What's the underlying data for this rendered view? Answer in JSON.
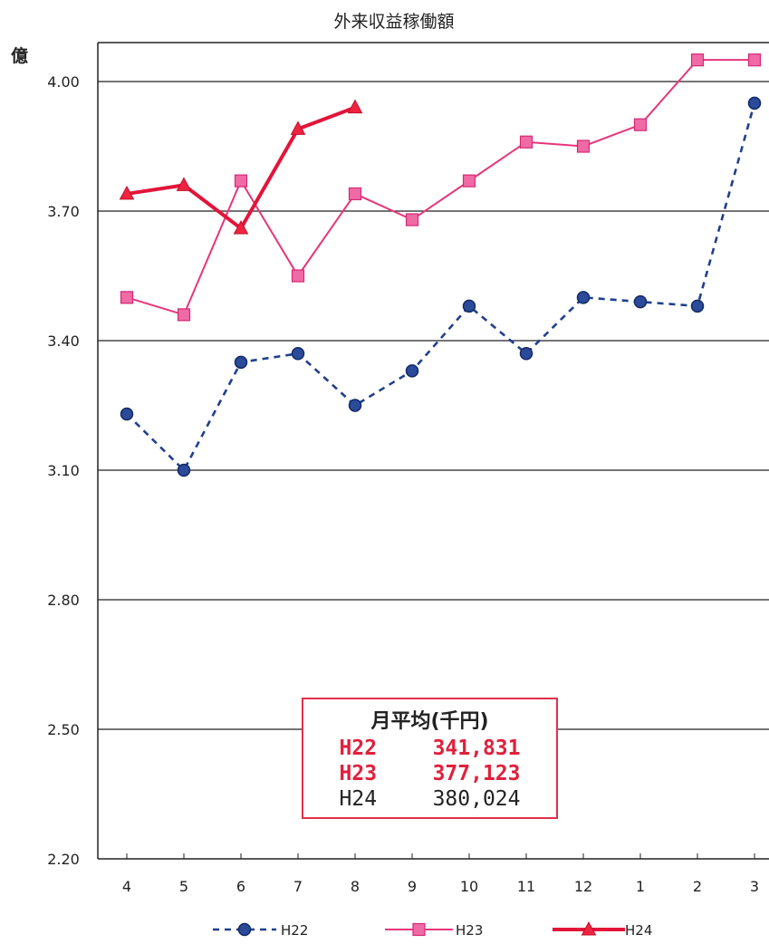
{
  "chart_data": {
    "type": "line",
    "title": "外来収益稼働額",
    "ylabel": "億",
    "ylim": [
      2.2,
      4.1
    ],
    "yticks": [
      "2.20",
      "2.50",
      "2.80",
      "3.10",
      "3.40",
      "3.70",
      "4.00"
    ],
    "yticks_values": [
      2.2,
      2.5,
      2.8,
      3.1,
      3.4,
      3.7,
      4.0
    ],
    "categories": [
      "4",
      "5",
      "6",
      "7",
      "8",
      "9",
      "10",
      "11",
      "12",
      "1",
      "2",
      "3"
    ],
    "grid": true,
    "legend_position": "bottom",
    "series": [
      {
        "name": "H22",
        "color": "#1f3f8f",
        "style": "dashed",
        "marker": "circle",
        "values": [
          3.23,
          3.1,
          3.35,
          3.37,
          3.25,
          3.33,
          3.48,
          3.37,
          3.5,
          3.49,
          3.48,
          3.95
        ]
      },
      {
        "name": "H23",
        "color": "#e8357a",
        "style": "solid",
        "marker": "square",
        "values": [
          3.5,
          3.46,
          3.77,
          3.55,
          3.74,
          3.68,
          3.77,
          3.86,
          3.85,
          3.9,
          4.05,
          4.05
        ]
      },
      {
        "name": "H24",
        "color": "#e4133a",
        "style": "solid-thick",
        "marker": "triangle",
        "values": [
          3.74,
          3.76,
          3.66,
          3.89,
          3.94,
          null,
          null,
          null,
          null,
          null,
          null,
          null
        ]
      }
    ]
  },
  "summary_box": {
    "title": "月平均(千円)",
    "rows": [
      {
        "label": "H22",
        "value": "341,831",
        "color": "red"
      },
      {
        "label": "H23",
        "value": "377,123",
        "color": "red"
      },
      {
        "label": "H24",
        "value": "380,024",
        "color": "black"
      }
    ],
    "border_color": "#e0304a"
  }
}
